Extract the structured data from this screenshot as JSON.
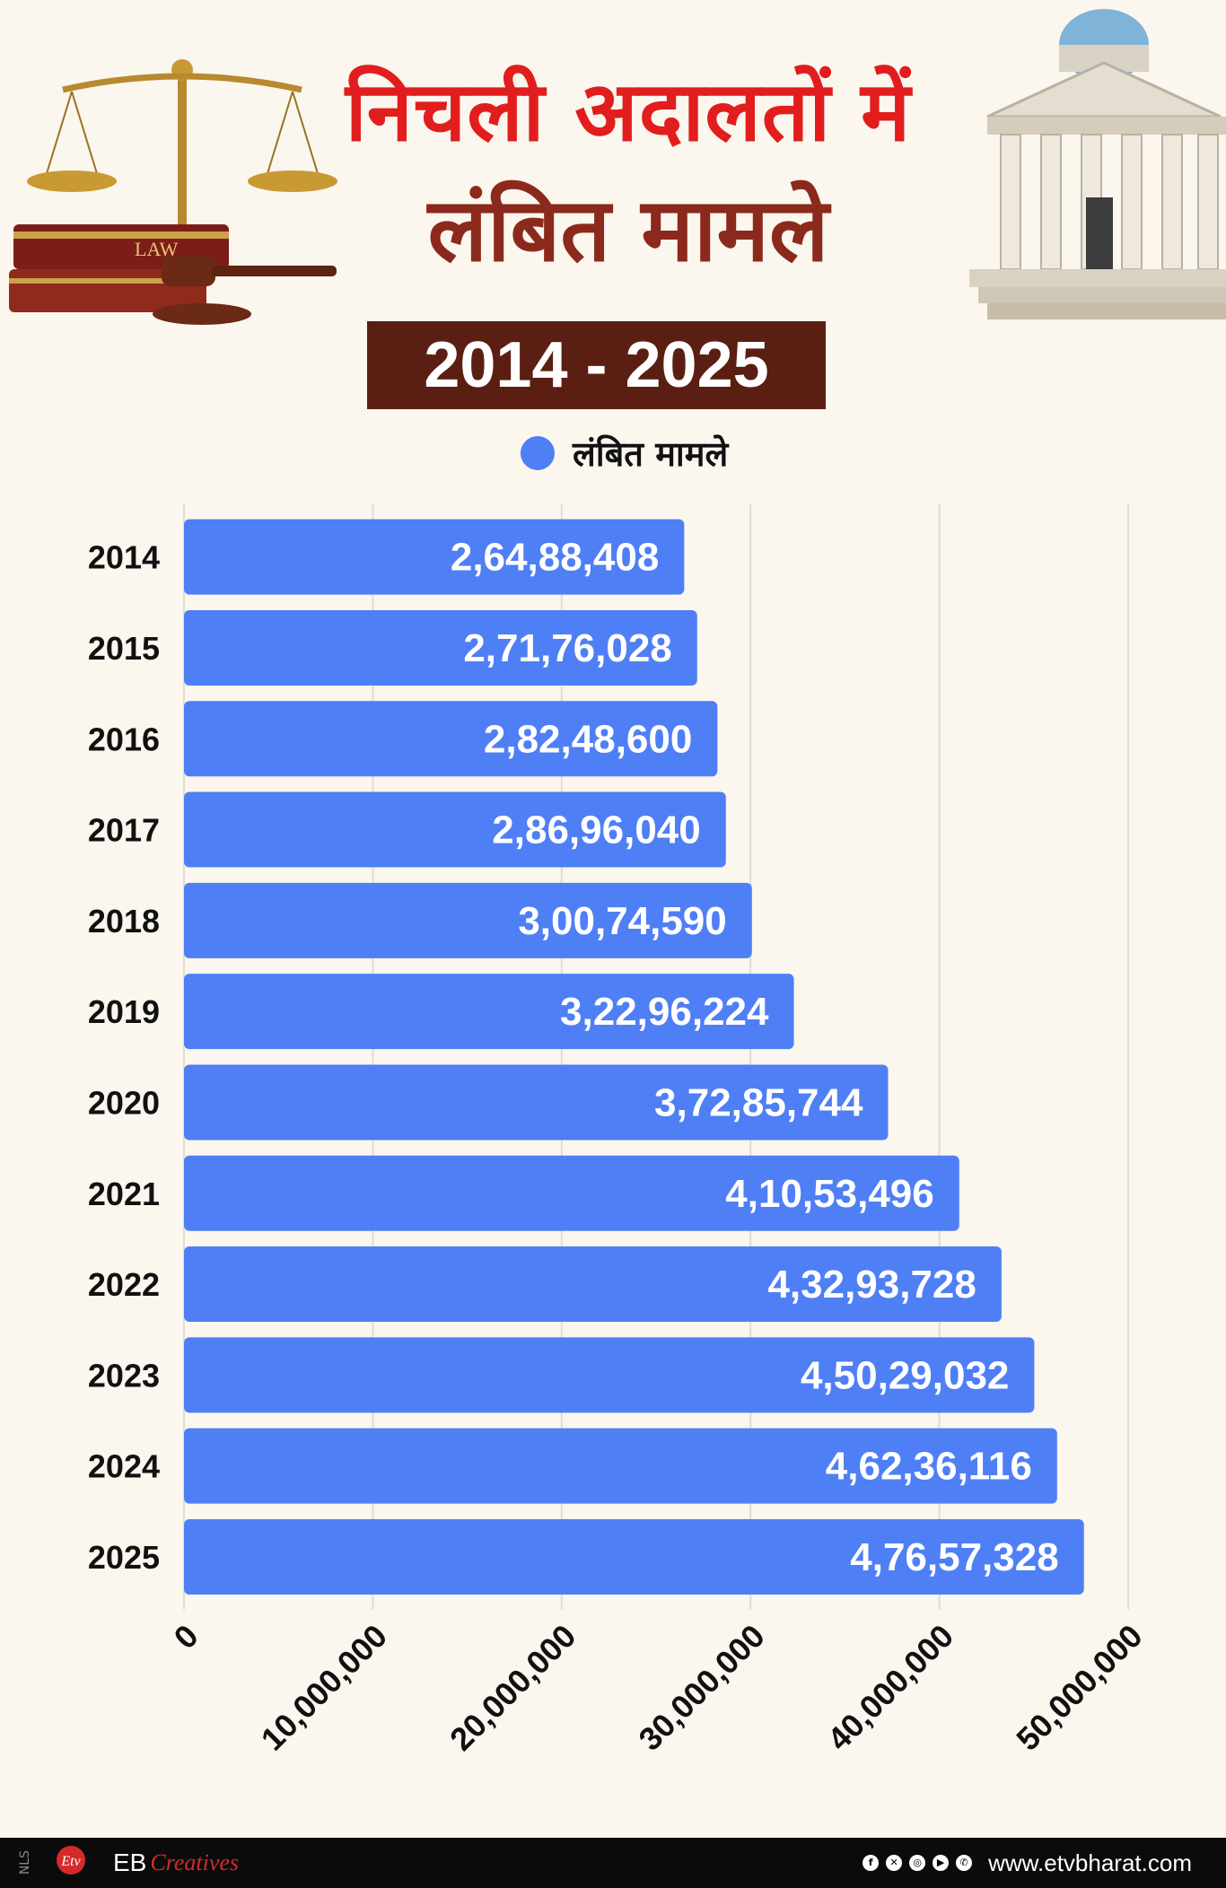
{
  "header": {
    "title_line1": "निचली अदालतों में",
    "title_line2": "लंबित मामले",
    "year_range": "2014 - 2025",
    "illustration_left": "scales-books-gavel",
    "illustration_right": "courthouse"
  },
  "legend": {
    "label": "लंबित मामले",
    "color": "#4f7ff5"
  },
  "chart_data": {
    "type": "bar",
    "orientation": "horizontal",
    "categories": [
      "2014",
      "2015",
      "2016",
      "2017",
      "2018",
      "2019",
      "2020",
      "2021",
      "2022",
      "2023",
      "2024",
      "2025"
    ],
    "series": [
      {
        "name": "लंबित मामले",
        "values": [
          26488408,
          27176028,
          28248600,
          28696040,
          30074590,
          32296224,
          37285744,
          41053496,
          43293728,
          45029032,
          46236116,
          47657328
        ],
        "labels": [
          "2,64,88,408",
          "2,71,76,028",
          "2,82,48,600",
          "2,86,96,040",
          "3,00,74,590",
          "3,22,96,224",
          "3,72,85,744",
          "4,10,53,496",
          "4,32,93,728",
          "4,50,29,032",
          "4,62,36,116",
          "4,76,57,328"
        ]
      }
    ],
    "xlim": [
      0,
      50000000
    ],
    "x_ticks": [
      "0",
      "10,000,000",
      "20,000,000",
      "30,000,000",
      "40,000,000",
      "50,000,000"
    ],
    "grid": true,
    "bar_color": "#4f7ff5",
    "legend_position": "top"
  },
  "footer": {
    "nls": "NLS",
    "logo": "etv-bharat-logo",
    "eb": "EB",
    "eb_sub": "Creatives",
    "social_icons": [
      "facebook-icon",
      "x-icon",
      "instagram-icon",
      "youtube-icon",
      "whatsapp-icon"
    ],
    "url": "www.etvbharat.com"
  }
}
